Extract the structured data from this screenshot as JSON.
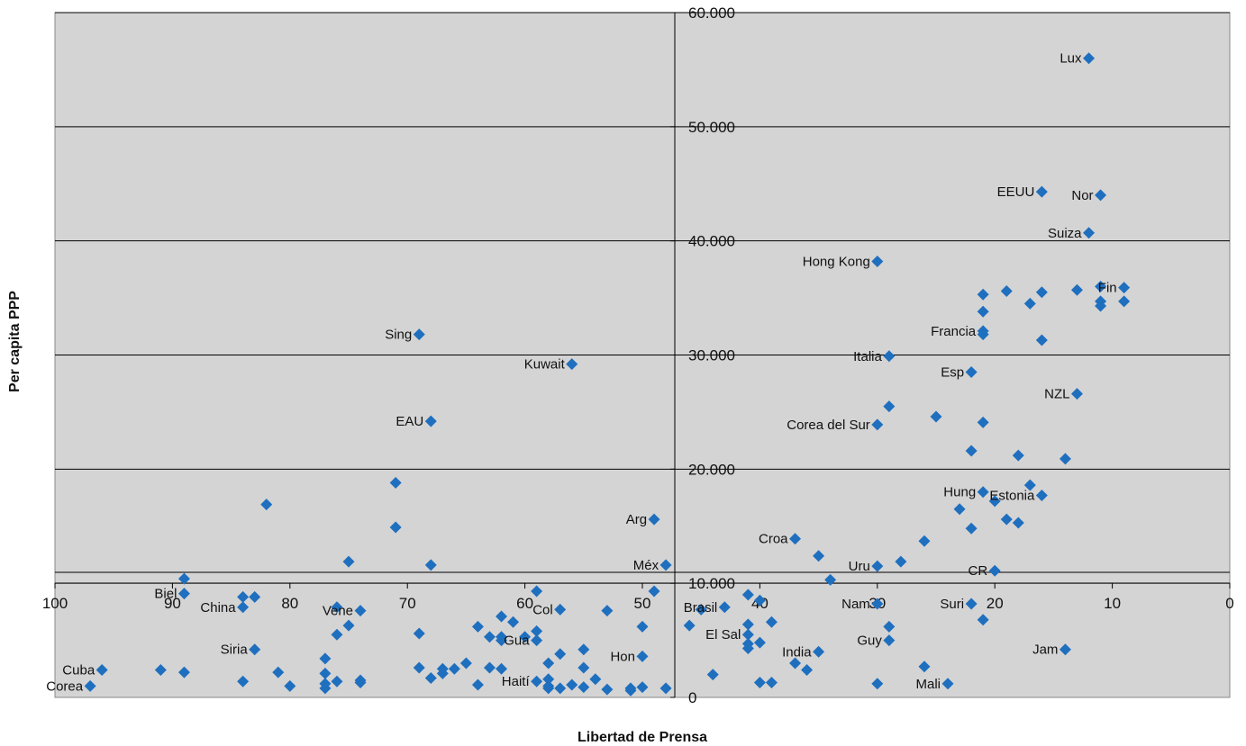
{
  "chart_data": {
    "type": "scatter",
    "title": "",
    "xlabel": "Libertad de Prensa",
    "ylabel": "Per capita PPP",
    "xlim": [
      100,
      0
    ],
    "ylim": [
      0,
      60000
    ],
    "x_reversed": true,
    "grid": true,
    "x_ticks": [
      100,
      90,
      80,
      70,
      60,
      50,
      40,
      30,
      20,
      10,
      0
    ],
    "y_ticks": [
      0,
      10000,
      20000,
      30000,
      40000,
      50000,
      60000
    ],
    "x_tick_labels": [
      "100",
      "90",
      "80",
      "70",
      "60",
      "50",
      "40",
      "30",
      "20",
      "10",
      "0"
    ],
    "y_tick_labels": [
      "0",
      "10.000",
      "20.000",
      "30.000",
      "40.000",
      "50.000",
      "60.000"
    ],
    "colors": {
      "plot_bg": "#d4d4d4",
      "marker": "#1f6fbf",
      "grid": "#000000"
    },
    "series": [
      {
        "points": [
          {
            "x": 12,
            "y": 56000,
            "label": "Lux"
          },
          {
            "x": 16,
            "y": 44300,
            "label": "EEUU"
          },
          {
            "x": 11,
            "y": 44000,
            "label": "Nor"
          },
          {
            "x": 12,
            "y": 40700,
            "label": "Suiza"
          },
          {
            "x": 30,
            "y": 38200,
            "label": "Hong Kong"
          },
          {
            "x": 21,
            "y": 35300
          },
          {
            "x": 19,
            "y": 35600
          },
          {
            "x": 16,
            "y": 35500
          },
          {
            "x": 13,
            "y": 35700
          },
          {
            "x": 11,
            "y": 36000
          },
          {
            "x": 9,
            "y": 35900,
            "label": "Fin"
          },
          {
            "x": 17,
            "y": 34500
          },
          {
            "x": 11,
            "y": 34700
          },
          {
            "x": 11,
            "y": 34300
          },
          {
            "x": 9,
            "y": 34700
          },
          {
            "x": 21,
            "y": 33800
          },
          {
            "x": 69,
            "y": 31800,
            "label": "Sing"
          },
          {
            "x": 21,
            "y": 32100,
            "label": "Francia"
          },
          {
            "x": 21,
            "y": 31800
          },
          {
            "x": 16,
            "y": 31300
          },
          {
            "x": 29,
            "y": 29900,
            "label": "Italia"
          },
          {
            "x": 56,
            "y": 29200,
            "label": "Kuwait"
          },
          {
            "x": 22,
            "y": 28500,
            "label": "Esp"
          },
          {
            "x": 13,
            "y": 26600,
            "label": "NZL"
          },
          {
            "x": 29,
            "y": 25500
          },
          {
            "x": 25,
            "y": 24600
          },
          {
            "x": 68,
            "y": 24200,
            "label": "EAU"
          },
          {
            "x": 30,
            "y": 23900,
            "label": "Corea del Sur"
          },
          {
            "x": 21,
            "y": 24100
          },
          {
            "x": 22,
            "y": 21600
          },
          {
            "x": 18,
            "y": 21200
          },
          {
            "x": 14,
            "y": 20900
          },
          {
            "x": 71,
            "y": 18800
          },
          {
            "x": 17,
            "y": 18600
          },
          {
            "x": 21,
            "y": 18000,
            "label": "Hung"
          },
          {
            "x": 16,
            "y": 17700,
            "label": "Estonia"
          },
          {
            "x": 20,
            "y": 17200
          },
          {
            "x": 82,
            "y": 16900
          },
          {
            "x": 23,
            "y": 16500
          },
          {
            "x": 49,
            "y": 15600,
            "label": "Arg"
          },
          {
            "x": 19,
            "y": 15600
          },
          {
            "x": 18,
            "y": 15300
          },
          {
            "x": 71,
            "y": 14900
          },
          {
            "x": 22,
            "y": 14800
          },
          {
            "x": 37,
            "y": 13900,
            "label": "Croa"
          },
          {
            "x": 26,
            "y": 13700
          },
          {
            "x": 35,
            "y": 12400
          },
          {
            "x": 28,
            "y": 11900
          },
          {
            "x": 75,
            "y": 11900
          },
          {
            "x": 68,
            "y": 11600
          },
          {
            "x": 48,
            "y": 11600,
            "label": "Méx"
          },
          {
            "x": 30,
            "y": 11500,
            "label": "Uru"
          },
          {
            "x": 20,
            "y": 11100,
            "label": "CR"
          },
          {
            "x": 34,
            "y": 10300
          },
          {
            "x": 89,
            "y": 10400
          },
          {
            "x": 89,
            "y": 9100,
            "label": "Biel"
          },
          {
            "x": 59,
            "y": 9300
          },
          {
            "x": 49,
            "y": 9300
          },
          {
            "x": 84,
            "y": 8800
          },
          {
            "x": 83,
            "y": 8800
          },
          {
            "x": 41,
            "y": 9000
          },
          {
            "x": 43,
            "y": 7900,
            "label": "Brasil"
          },
          {
            "x": 40,
            "y": 8500
          },
          {
            "x": 30,
            "y": 8200,
            "label": "Nam"
          },
          {
            "x": 22,
            "y": 8200,
            "label": "Suri"
          },
          {
            "x": 84,
            "y": 7900,
            "label": "China"
          },
          {
            "x": 76,
            "y": 7900
          },
          {
            "x": 74,
            "y": 7600,
            "label": "Vene"
          },
          {
            "x": 57,
            "y": 7700,
            "label": "Col"
          },
          {
            "x": 53,
            "y": 7600
          },
          {
            "x": 45,
            "y": 7700
          },
          {
            "x": 21,
            "y": 6800
          },
          {
            "x": 62,
            "y": 7100
          },
          {
            "x": 61,
            "y": 6600
          },
          {
            "x": 64,
            "y": 6200
          },
          {
            "x": 75,
            "y": 6300
          },
          {
            "x": 50,
            "y": 6200
          },
          {
            "x": 46,
            "y": 6300
          },
          {
            "x": 41,
            "y": 6400
          },
          {
            "x": 39,
            "y": 6600
          },
          {
            "x": 29,
            "y": 6200
          },
          {
            "x": 76,
            "y": 5500
          },
          {
            "x": 69,
            "y": 5600
          },
          {
            "x": 59,
            "y": 5800
          },
          {
            "x": 60,
            "y": 5300
          },
          {
            "x": 63,
            "y": 5300
          },
          {
            "x": 62,
            "y": 5300
          },
          {
            "x": 41,
            "y": 5500,
            "label": "El Sal"
          },
          {
            "x": 62,
            "y": 5000
          },
          {
            "x": 59,
            "y": 5000,
            "label": "Gua"
          },
          {
            "x": 29,
            "y": 5000,
            "label": "Guy"
          },
          {
            "x": 41,
            "y": 4700
          },
          {
            "x": 40,
            "y": 4800
          },
          {
            "x": 41,
            "y": 4300
          },
          {
            "x": 83,
            "y": 4200,
            "label": "Siria"
          },
          {
            "x": 55,
            "y": 4200
          },
          {
            "x": 14,
            "y": 4200,
            "label": "Jam"
          },
          {
            "x": 35,
            "y": 4000,
            "label": "India"
          },
          {
            "x": 57,
            "y": 3800
          },
          {
            "x": 50,
            "y": 3600,
            "label": "Hon"
          },
          {
            "x": 77,
            "y": 3400
          },
          {
            "x": 58,
            "y": 3000
          },
          {
            "x": 37,
            "y": 3000
          },
          {
            "x": 65,
            "y": 3000
          },
          {
            "x": 96,
            "y": 2400,
            "label": "Cuba"
          },
          {
            "x": 91,
            "y": 2400
          },
          {
            "x": 69,
            "y": 2600
          },
          {
            "x": 67,
            "y": 2500
          },
          {
            "x": 66,
            "y": 2500
          },
          {
            "x": 63,
            "y": 2600
          },
          {
            "x": 62,
            "y": 2500
          },
          {
            "x": 55,
            "y": 2600
          },
          {
            "x": 26,
            "y": 2700
          },
          {
            "x": 36,
            "y": 2400
          },
          {
            "x": 89,
            "y": 2200
          },
          {
            "x": 81,
            "y": 2200
          },
          {
            "x": 77,
            "y": 2100
          },
          {
            "x": 67,
            "y": 2100
          },
          {
            "x": 44,
            "y": 2000
          },
          {
            "x": 68,
            "y": 1700
          },
          {
            "x": 58,
            "y": 1600
          },
          {
            "x": 54,
            "y": 1600
          },
          {
            "x": 59,
            "y": 1400,
            "label": "Haití"
          },
          {
            "x": 84,
            "y": 1400
          },
          {
            "x": 77,
            "y": 1200
          },
          {
            "x": 76,
            "y": 1400
          },
          {
            "x": 74,
            "y": 1300
          },
          {
            "x": 74,
            "y": 1500
          },
          {
            "x": 56,
            "y": 1100
          },
          {
            "x": 40,
            "y": 1300
          },
          {
            "x": 39,
            "y": 1300
          },
          {
            "x": 30,
            "y": 1200
          },
          {
            "x": 24,
            "y": 1200,
            "label": "Mali"
          },
          {
            "x": 97,
            "y": 1000,
            "label": "Corea"
          },
          {
            "x": 80,
            "y": 1000
          },
          {
            "x": 77,
            "y": 800
          },
          {
            "x": 64,
            "y": 1100
          },
          {
            "x": 58,
            "y": 1000
          },
          {
            "x": 58,
            "y": 800
          },
          {
            "x": 57,
            "y": 800
          },
          {
            "x": 55,
            "y": 900
          },
          {
            "x": 53,
            "y": 700
          },
          {
            "x": 51,
            "y": 800
          },
          {
            "x": 50,
            "y": 900
          },
          {
            "x": 51,
            "y": 600
          },
          {
            "x": 48,
            "y": 800
          }
        ]
      }
    ]
  }
}
